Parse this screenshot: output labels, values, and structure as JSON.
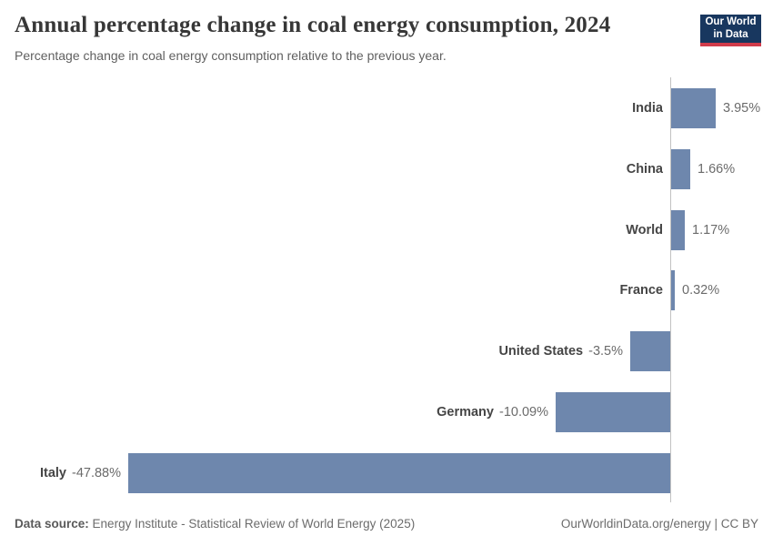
{
  "header": {
    "title": "Annual percentage change in coal energy consumption, 2024",
    "subtitle": "Percentage change in coal energy consumption relative to the previous year."
  },
  "logo": {
    "line1": "Our World",
    "line2": "in Data",
    "bg_color": "#18375f",
    "accent_color": "#d13c4b"
  },
  "chart_data": {
    "type": "bar",
    "orientation": "horizontal",
    "title": "Annual percentage change in coal energy consumption, 2024",
    "categories": [
      "India",
      "China",
      "World",
      "France",
      "United States",
      "Germany",
      "Italy"
    ],
    "values": [
      3.95,
      1.66,
      1.17,
      0.32,
      -3.5,
      -10.09,
      -47.88
    ],
    "value_labels": [
      "3.95%",
      "1.66%",
      "1.17%",
      "0.32%",
      "-3.5%",
      "-10.09%",
      "-47.88%"
    ],
    "unit": "%",
    "xlim": [
      -47.88,
      3.95
    ],
    "grid": false,
    "bar_color": "#6e87ad",
    "axis_color": "#c2c2c2"
  },
  "footer": {
    "source_label": "Data source:",
    "source_text": "Energy Institute - Statistical Review of World Energy (2025)",
    "right_text": "OurWorldinData.org/energy | CC BY"
  }
}
